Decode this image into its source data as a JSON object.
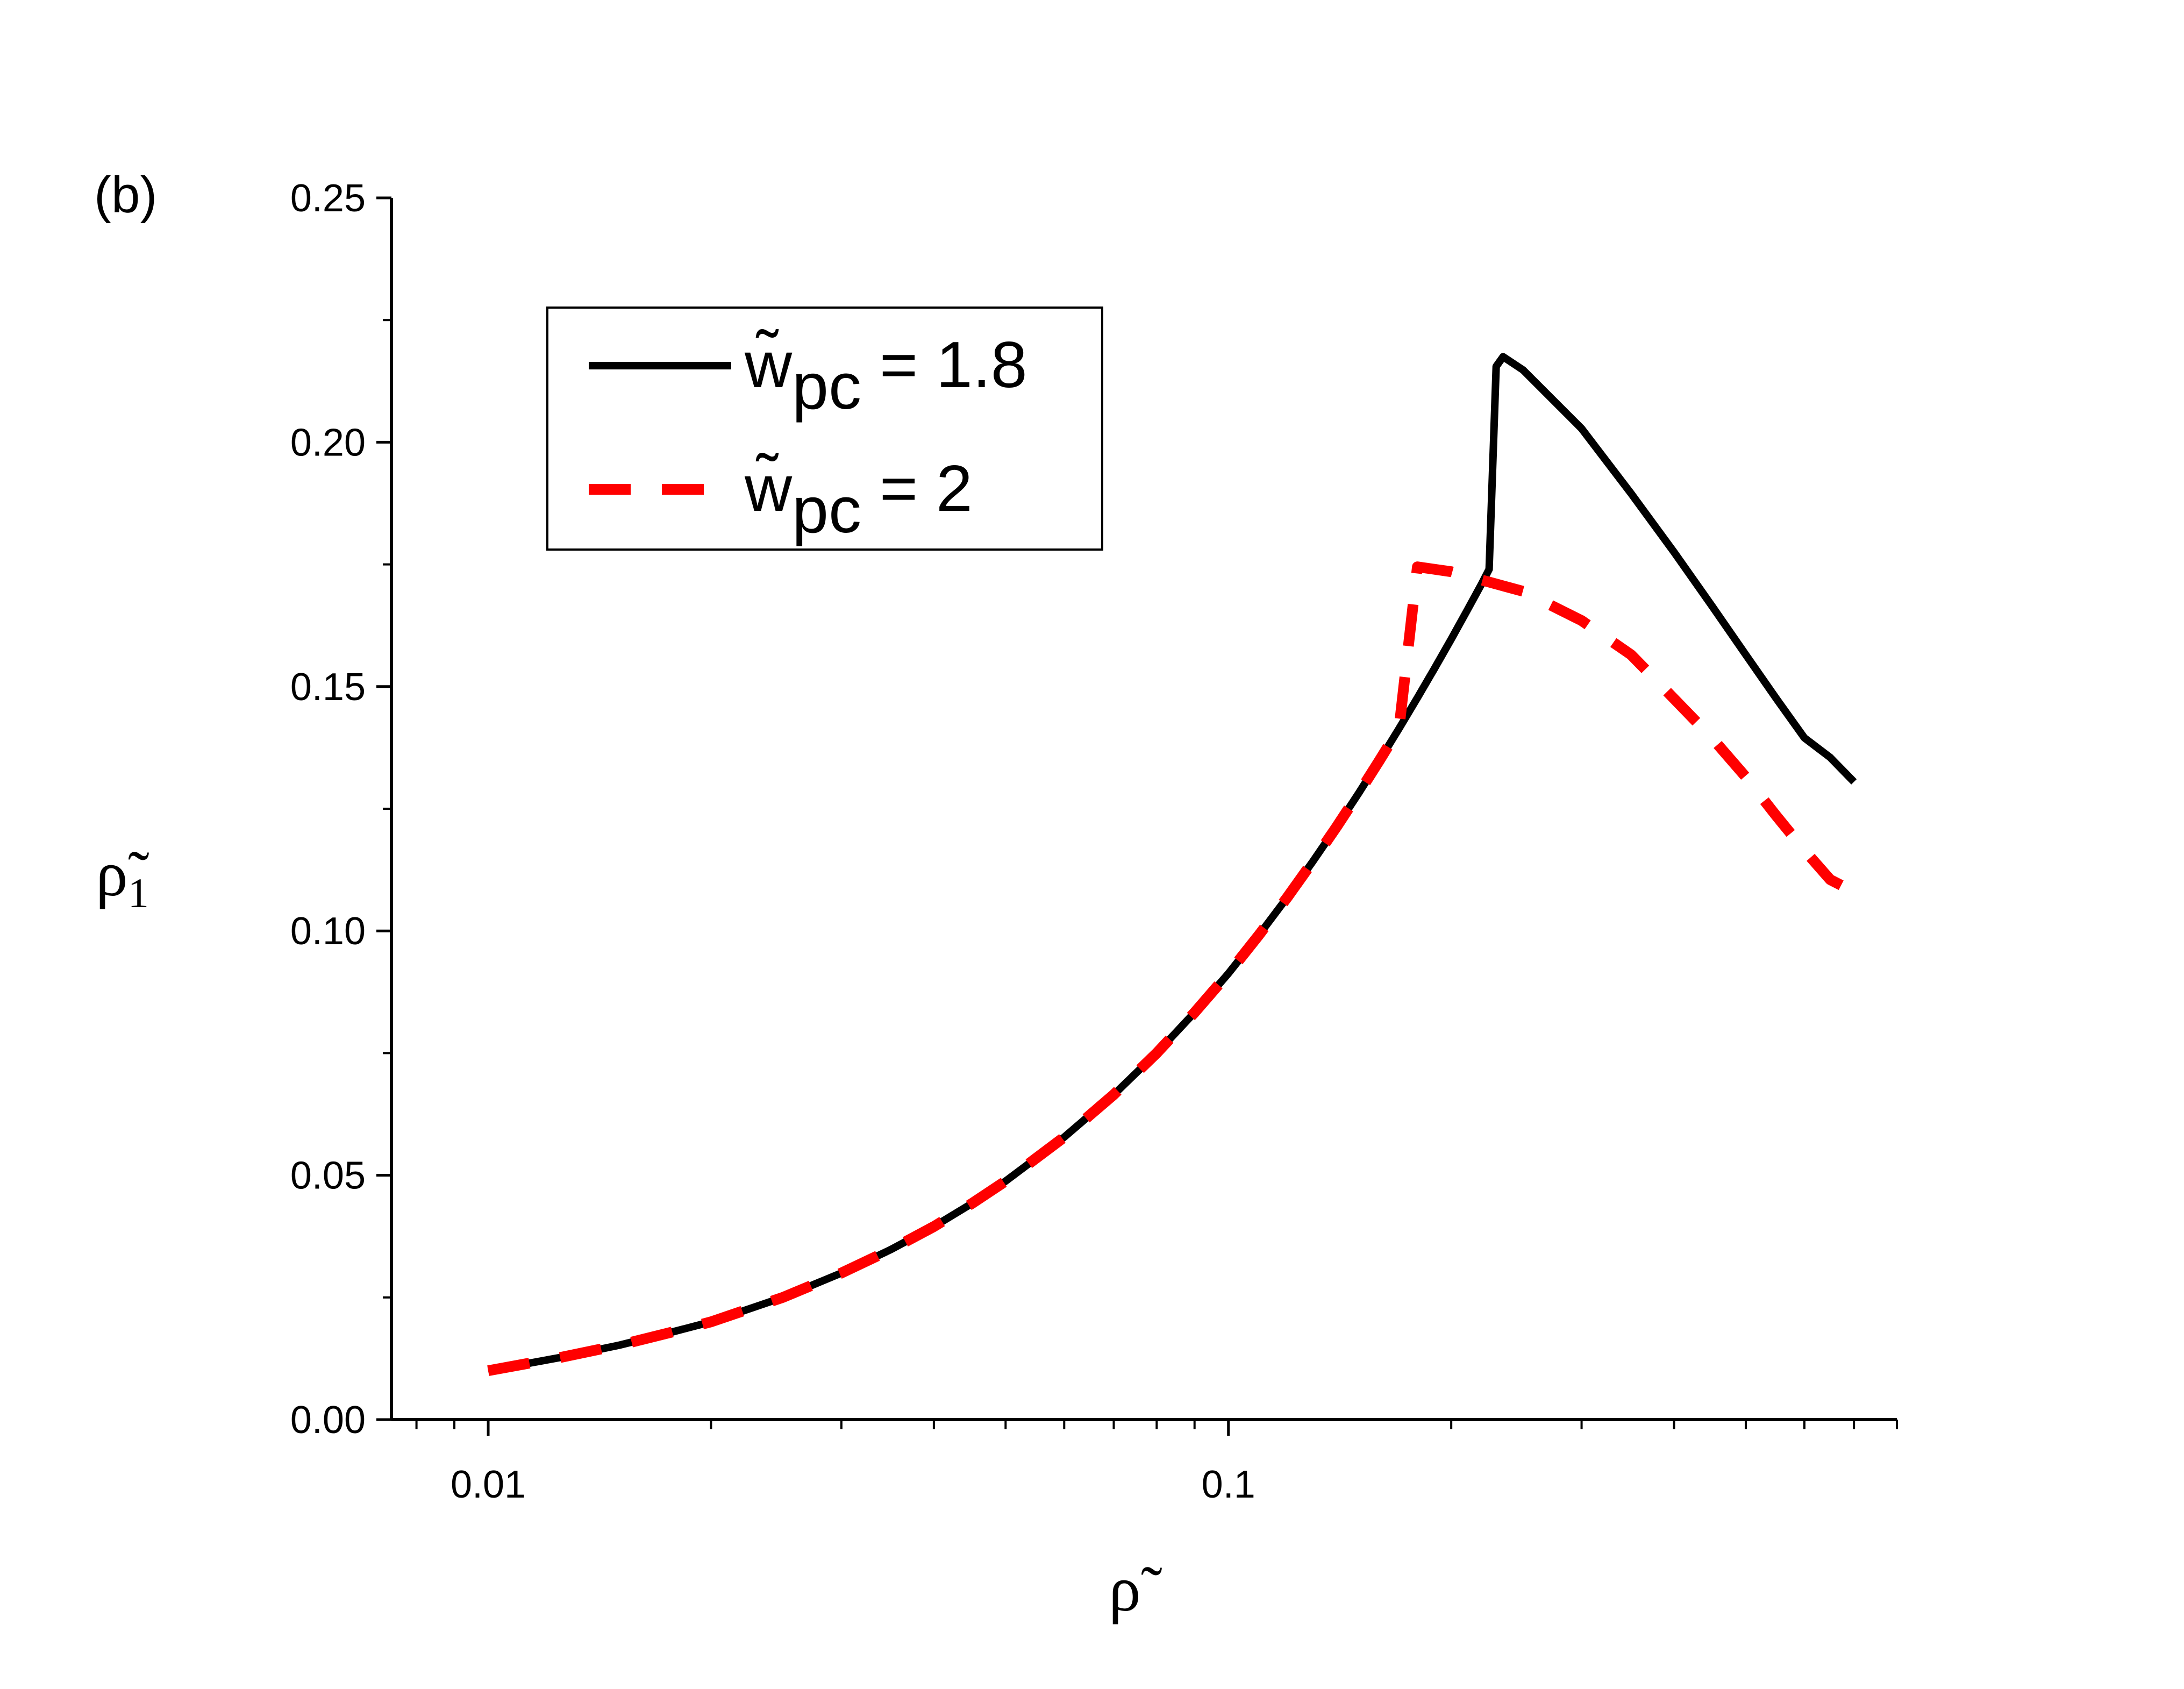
{
  "chart_data": {
    "type": "line",
    "panel_label": "(b)",
    "xlabel": "ρ̃",
    "ylabel": "ρ̃",
    "ylabel_sub": "1",
    "xscale": "log",
    "xlim": [
      0.0074,
      0.8
    ],
    "ylim": [
      0,
      0.25
    ],
    "x_ticks": [
      {
        "value": 0.01,
        "label": "0.01"
      },
      {
        "value": 0.1,
        "label": "0.1"
      }
    ],
    "y_ticks": [
      {
        "value": 0,
        "label": "0.00"
      },
      {
        "value": 0.05,
        "label": "0.05"
      },
      {
        "value": 0.1,
        "label": "0.10"
      },
      {
        "value": 0.15,
        "label": "0.15"
      },
      {
        "value": 0.2,
        "label": "0.20"
      },
      {
        "value": 0.25,
        "label": "0.25"
      }
    ],
    "grid": false,
    "legend_position": "top-left",
    "series": [
      {
        "name": "w̃pc = 1.8",
        "name_main": "w̃",
        "name_sub": "pc",
        "name_rest": " = 1.8",
        "color": "#000000",
        "dash": "solid",
        "x": [
          0.01,
          0.0125,
          0.015,
          0.0175,
          0.02,
          0.025,
          0.03,
          0.035,
          0.04,
          0.045,
          0.05,
          0.06,
          0.07,
          0.08,
          0.09,
          0.1,
          0.11,
          0.12,
          0.13,
          0.14,
          0.15,
          0.16,
          0.17,
          0.18,
          0.19,
          0.2,
          0.21,
          0.22,
          0.225,
          0.23,
          0.235,
          0.25,
          0.3,
          0.35,
          0.4,
          0.45,
          0.5,
          0.55,
          0.6,
          0.65,
          0.7
        ],
        "y": [
          0.01,
          0.0127,
          0.0152,
          0.0177,
          0.02,
          0.025,
          0.03,
          0.0348,
          0.0395,
          0.0442,
          0.0488,
          0.0578,
          0.0665,
          0.075,
          0.0833,
          0.0913,
          0.0992,
          0.1068,
          0.1142,
          0.1213,
          0.1282,
          0.1349,
          0.1414,
          0.1477,
          0.1538,
          0.1597,
          0.1655,
          0.1711,
          0.174,
          0.2155,
          0.2175,
          0.2148,
          0.2028,
          0.1895,
          0.1775,
          0.1665,
          0.1565,
          0.1475,
          0.1395,
          0.1355,
          0.1305
        ]
      },
      {
        "name": "w̃pc = 2",
        "name_main": "w̃",
        "name_sub": "pc",
        "name_rest": " = 2",
        "color": "#ff0000",
        "dash": "dashed",
        "x": [
          0.01,
          0.0125,
          0.015,
          0.0175,
          0.02,
          0.025,
          0.03,
          0.035,
          0.04,
          0.045,
          0.05,
          0.06,
          0.07,
          0.08,
          0.09,
          0.1,
          0.11,
          0.12,
          0.13,
          0.14,
          0.15,
          0.16,
          0.17,
          0.18,
          0.2,
          0.25,
          0.3,
          0.35,
          0.4,
          0.45,
          0.5,
          0.55,
          0.6,
          0.65,
          0.7
        ],
        "y": [
          0.01,
          0.0127,
          0.0152,
          0.0177,
          0.02,
          0.025,
          0.03,
          0.0348,
          0.0395,
          0.0442,
          0.0488,
          0.0578,
          0.0665,
          0.075,
          0.0833,
          0.0913,
          0.0992,
          0.1068,
          0.1142,
          0.1213,
          0.1282,
          0.1349,
          0.1414,
          0.1745,
          0.1735,
          0.1695,
          0.1635,
          0.1565,
          0.1475,
          0.1395,
          0.1315,
          0.1235,
          0.1165,
          0.1105,
          0.108
        ]
      }
    ]
  }
}
